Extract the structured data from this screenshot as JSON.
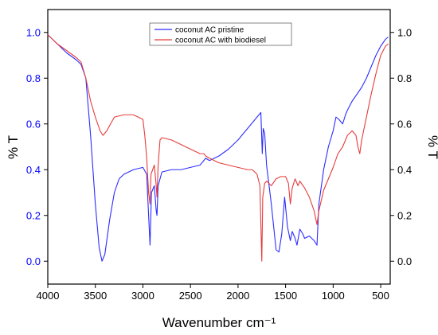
{
  "chart_data": {
    "type": "line",
    "xlabel": "Wavenumber cm⁻¹",
    "ylabel_left": "% T",
    "ylabel_right": "% T",
    "xlim": [
      4000,
      400
    ],
    "ylim": [
      -0.1,
      1.1
    ],
    "x_ticks": [
      4000,
      3500,
      3000,
      2500,
      2000,
      1500,
      1000,
      500
    ],
    "y_ticks": [
      0.0,
      0.2,
      0.4,
      0.6,
      0.8,
      1.0
    ],
    "y_tick_labels": [
      "0.0",
      "0.2",
      "0.4",
      "0.6",
      "0.8",
      "1.0"
    ],
    "grid": false,
    "legend_position": "top-center",
    "left_axis_color": "#0000ff",
    "right_axis_color": "#000000",
    "series": [
      {
        "name": "coconut AC pristine",
        "color": "#2c2cff",
        "points": [
          [
            4000,
            0.99
          ],
          [
            3900,
            0.95
          ],
          [
            3800,
            0.91
          ],
          [
            3700,
            0.88
          ],
          [
            3650,
            0.86
          ],
          [
            3600,
            0.8
          ],
          [
            3550,
            0.55
          ],
          [
            3500,
            0.25
          ],
          [
            3460,
            0.06
          ],
          [
            3430,
            0.0
          ],
          [
            3400,
            0.03
          ],
          [
            3350,
            0.18
          ],
          [
            3300,
            0.3
          ],
          [
            3250,
            0.36
          ],
          [
            3200,
            0.38
          ],
          [
            3100,
            0.4
          ],
          [
            3000,
            0.41
          ],
          [
            2960,
            0.38
          ],
          [
            2940,
            0.2
          ],
          [
            2925,
            0.07
          ],
          [
            2910,
            0.3
          ],
          [
            2880,
            0.33
          ],
          [
            2860,
            0.22
          ],
          [
            2852,
            0.2
          ],
          [
            2840,
            0.33
          ],
          [
            2800,
            0.39
          ],
          [
            2700,
            0.4
          ],
          [
            2600,
            0.4
          ],
          [
            2500,
            0.41
          ],
          [
            2400,
            0.42
          ],
          [
            2360,
            0.44
          ],
          [
            2340,
            0.45
          ],
          [
            2300,
            0.44
          ],
          [
            2200,
            0.46
          ],
          [
            2100,
            0.49
          ],
          [
            2000,
            0.53
          ],
          [
            1900,
            0.58
          ],
          [
            1800,
            0.63
          ],
          [
            1760,
            0.65
          ],
          [
            1745,
            0.47
          ],
          [
            1735,
            0.58
          ],
          [
            1720,
            0.56
          ],
          [
            1700,
            0.42
          ],
          [
            1650,
            0.25
          ],
          [
            1600,
            0.05
          ],
          [
            1570,
            0.04
          ],
          [
            1540,
            0.12
          ],
          [
            1510,
            0.28
          ],
          [
            1480,
            0.15
          ],
          [
            1450,
            0.09
          ],
          [
            1430,
            0.13
          ],
          [
            1400,
            0.1
          ],
          [
            1380,
            0.07
          ],
          [
            1350,
            0.14
          ],
          [
            1320,
            0.12
          ],
          [
            1300,
            0.1
          ],
          [
            1250,
            0.11
          ],
          [
            1200,
            0.09
          ],
          [
            1170,
            0.07
          ],
          [
            1150,
            0.25
          ],
          [
            1100,
            0.4
          ],
          [
            1050,
            0.5
          ],
          [
            1000,
            0.57
          ],
          [
            970,
            0.63
          ],
          [
            940,
            0.62
          ],
          [
            900,
            0.6
          ],
          [
            870,
            0.64
          ],
          [
            850,
            0.66
          ],
          [
            800,
            0.7
          ],
          [
            750,
            0.73
          ],
          [
            700,
            0.76
          ],
          [
            650,
            0.8
          ],
          [
            600,
            0.85
          ],
          [
            550,
            0.9
          ],
          [
            500,
            0.94
          ],
          [
            450,
            0.97
          ],
          [
            420,
            0.98
          ]
        ]
      },
      {
        "name": "coconut AC with biodiesel",
        "color": "#e63c3c",
        "points": [
          [
            4000,
            0.99
          ],
          [
            3900,
            0.95
          ],
          [
            3800,
            0.92
          ],
          [
            3700,
            0.89
          ],
          [
            3650,
            0.87
          ],
          [
            3600,
            0.8
          ],
          [
            3550,
            0.7
          ],
          [
            3500,
            0.63
          ],
          [
            3450,
            0.57
          ],
          [
            3420,
            0.55
          ],
          [
            3380,
            0.57
          ],
          [
            3300,
            0.63
          ],
          [
            3200,
            0.64
          ],
          [
            3100,
            0.64
          ],
          [
            3050,
            0.63
          ],
          [
            3000,
            0.62
          ],
          [
            2980,
            0.55
          ],
          [
            2960,
            0.45
          ],
          [
            2940,
            0.3
          ],
          [
            2925,
            0.25
          ],
          [
            2915,
            0.38
          ],
          [
            2880,
            0.42
          ],
          [
            2860,
            0.33
          ],
          [
            2852,
            0.28
          ],
          [
            2840,
            0.42
          ],
          [
            2820,
            0.53
          ],
          [
            2800,
            0.54
          ],
          [
            2700,
            0.53
          ],
          [
            2600,
            0.51
          ],
          [
            2500,
            0.49
          ],
          [
            2400,
            0.47
          ],
          [
            2360,
            0.47
          ],
          [
            2340,
            0.46
          ],
          [
            2300,
            0.45
          ],
          [
            2200,
            0.43
          ],
          [
            2100,
            0.42
          ],
          [
            2000,
            0.41
          ],
          [
            1900,
            0.4
          ],
          [
            1850,
            0.4
          ],
          [
            1800,
            0.38
          ],
          [
            1770,
            0.33
          ],
          [
            1750,
            0.0
          ],
          [
            1740,
            0.28
          ],
          [
            1720,
            0.34
          ],
          [
            1700,
            0.35
          ],
          [
            1650,
            0.33
          ],
          [
            1600,
            0.36
          ],
          [
            1550,
            0.37
          ],
          [
            1500,
            0.37
          ],
          [
            1470,
            0.34
          ],
          [
            1450,
            0.25
          ],
          [
            1430,
            0.32
          ],
          [
            1400,
            0.36
          ],
          [
            1370,
            0.33
          ],
          [
            1350,
            0.35
          ],
          [
            1300,
            0.32
          ],
          [
            1250,
            0.28
          ],
          [
            1200,
            0.22
          ],
          [
            1170,
            0.16
          ],
          [
            1150,
            0.22
          ],
          [
            1100,
            0.31
          ],
          [
            1050,
            0.36
          ],
          [
            1000,
            0.41
          ],
          [
            950,
            0.47
          ],
          [
            900,
            0.5
          ],
          [
            850,
            0.55
          ],
          [
            800,
            0.57
          ],
          [
            760,
            0.55
          ],
          [
            740,
            0.5
          ],
          [
            720,
            0.47
          ],
          [
            700,
            0.53
          ],
          [
            650,
            0.63
          ],
          [
            600,
            0.73
          ],
          [
            550,
            0.82
          ],
          [
            500,
            0.9
          ],
          [
            450,
            0.94
          ],
          [
            420,
            0.95
          ]
        ]
      }
    ]
  }
}
